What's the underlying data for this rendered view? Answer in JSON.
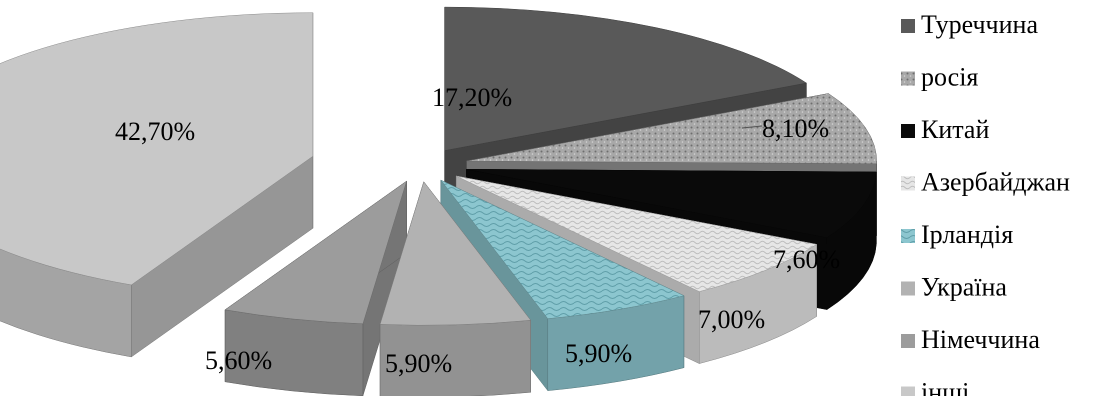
{
  "chart_data": {
    "type": "pie",
    "style": "3d-exploded",
    "legend_position": "right",
    "slices": [
      {
        "label": "Туреччина",
        "value": 17.2,
        "value_label": "17,20%",
        "color": "#595959"
      },
      {
        "label": "росія",
        "value": 8.1,
        "value_label": "8,10%",
        "color": "#9a9a9a"
      },
      {
        "label": "Китай",
        "value": 7.6,
        "value_label": "7,60%",
        "color": "#0a0a0a"
      },
      {
        "label": "Азербайджан",
        "value": 7.0,
        "value_label": "7,00%",
        "color": "#e4e4e4"
      },
      {
        "label": "Ірландія",
        "value": 5.9,
        "value_label": "5,90%",
        "color": "#8cc6cf"
      },
      {
        "label": "Україна",
        "value": 5.9,
        "value_label": "5,90%",
        "color": "#b2b2b2"
      },
      {
        "label": "Німеччина",
        "value": 5.6,
        "value_label": "5,60%",
        "color": "#9c9c9c"
      },
      {
        "label": "інші",
        "value": 42.7,
        "value_label": "42,70%",
        "color": "#c8c8c8"
      }
    ]
  }
}
